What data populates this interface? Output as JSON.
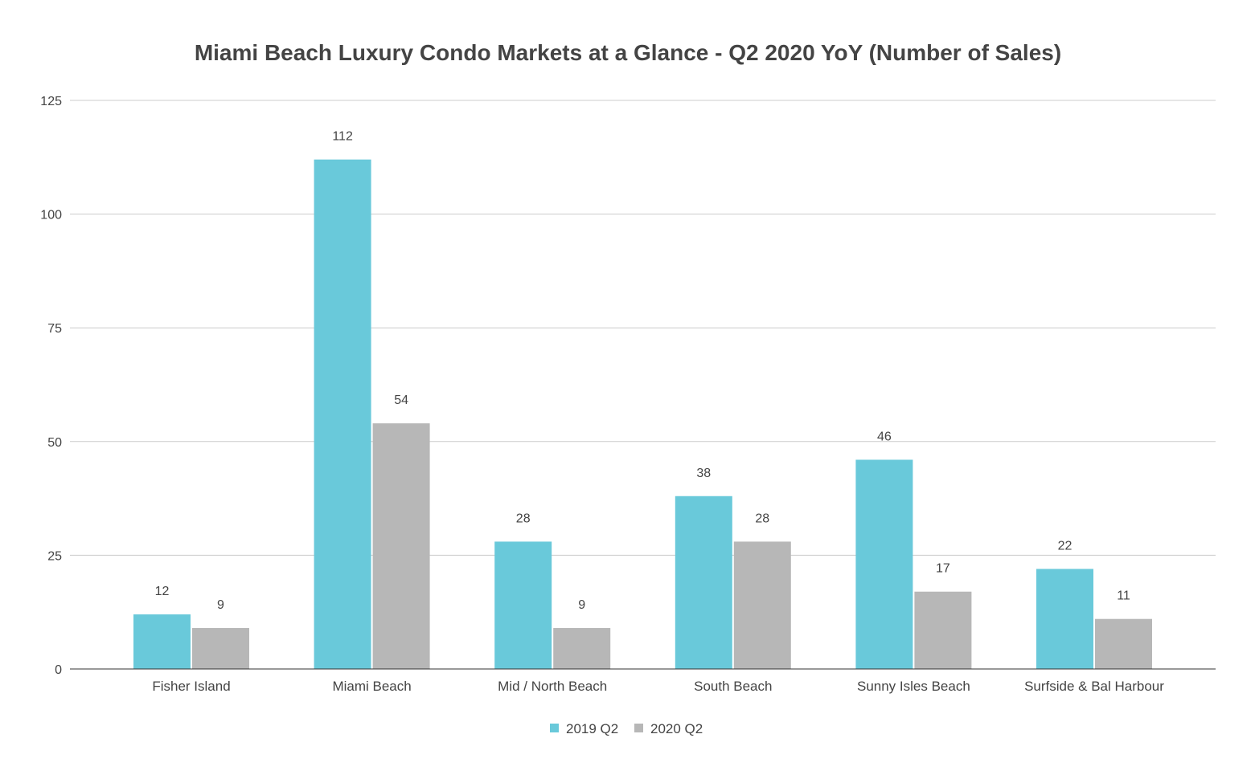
{
  "chart_data": {
    "type": "bar",
    "title": "Miami Beach Luxury Condo Markets at a Glance - Q2 2020 YoY (Number of Sales)",
    "xlabel": "",
    "ylabel": "",
    "ylim": [
      0,
      125
    ],
    "yticks": [
      "0",
      "25",
      "50",
      "75",
      "100",
      "125"
    ],
    "grid": true,
    "legend_position": "bottom",
    "categories": [
      "Fisher Island",
      "Miami Beach",
      "Mid / North Beach",
      "South Beach",
      "Sunny Isles Beach",
      "Surfside & Bal Harbour"
    ],
    "series": [
      {
        "name": "2019 Q2",
        "color": "#69c9da",
        "values": [
          12,
          112,
          28,
          38,
          46,
          22
        ]
      },
      {
        "name": "2020 Q2",
        "color": "#b7b7b7",
        "values": [
          9,
          54,
          9,
          28,
          17,
          11
        ]
      }
    ]
  }
}
